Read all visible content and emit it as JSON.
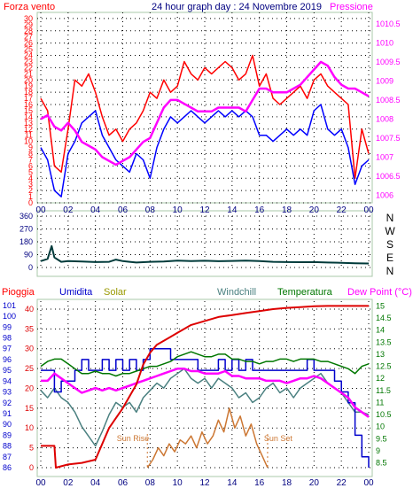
{
  "colors": {
    "background": "#ffffff",
    "plot_bg": "#ffffff",
    "grid": "#000000",
    "wind": "#ff0000",
    "pressure": "#ff00ff",
    "blue_trace": "#0000ff",
    "direction": "#003a3a",
    "rain": "#dd0000",
    "humidity": "#0000cc",
    "solar": "#cc7733",
    "windchill": "#4a8080",
    "temperature": "#007700",
    "dewpoint": "#ff00ff",
    "axis_text": "#000080",
    "frame": "#a8c8a8"
  },
  "chart_data": [
    {
      "type": "line",
      "title": "24 hour graph day : 24 Novembre 2019",
      "left_label": "Forza vento",
      "right_label": "Pressione",
      "x_ticks": [
        "00",
        "02",
        "04",
        "06",
        "08",
        "10",
        "12",
        "14",
        "16",
        "18",
        "20",
        "22",
        "00"
      ],
      "xlim": [
        0,
        24
      ],
      "y_left_ticks": [
        "0",
        "1",
        "2",
        "3",
        "4",
        "5",
        "6",
        "7",
        "8",
        "9",
        "10",
        "11",
        "12",
        "13",
        "14",
        "15",
        "16",
        "17",
        "18",
        "19",
        "20",
        "21",
        "22",
        "23",
        "24",
        "25",
        "26",
        "27",
        "28",
        "29",
        "30"
      ],
      "ylim_left": [
        0,
        31
      ],
      "y_right_ticks": [
        "1006",
        "1006.5",
        "1007",
        "1007.5",
        "1008",
        "1008.5",
        "1009",
        "1009.5",
        "1010",
        "1010.5"
      ],
      "ylim_right": [
        1005.8,
        1010.8
      ],
      "series": [
        {
          "key": "wind",
          "axis": "left",
          "x": [
            0,
            0.5,
            1,
            1.5,
            2,
            2.5,
            3,
            3.5,
            4,
            4.5,
            5,
            5.5,
            6,
            6.5,
            7,
            7.5,
            8,
            8.5,
            9,
            9.5,
            10,
            10.5,
            11,
            11.5,
            12,
            12.5,
            13,
            13.5,
            14,
            14.5,
            15,
            15.5,
            16,
            16.5,
            17,
            17.5,
            18,
            18.5,
            19,
            19.5,
            20,
            20.5,
            21,
            21.5,
            22,
            22.5,
            23,
            23.5,
            24
          ],
          "y": [
            17,
            15,
            6,
            5,
            12,
            20,
            19,
            21,
            18,
            14,
            11,
            12,
            10,
            12,
            13,
            15,
            18,
            17,
            20,
            18,
            19,
            23,
            21,
            20,
            22,
            21,
            22,
            23,
            22,
            20,
            21,
            24,
            19,
            21,
            17,
            16,
            17,
            18,
            19,
            17,
            20,
            21,
            19,
            18,
            17,
            16,
            4,
            12,
            8
          ]
        },
        {
          "key": "blue_trace",
          "axis": "left",
          "x": [
            0,
            0.5,
            1,
            1.5,
            2,
            2.5,
            3,
            3.5,
            4,
            4.5,
            5,
            5.5,
            6,
            6.5,
            7,
            7.5,
            8,
            8.5,
            9,
            9.5,
            10,
            10.5,
            11,
            11.5,
            12,
            12.5,
            13,
            13.5,
            14,
            14.5,
            15,
            15.5,
            16,
            16.5,
            17,
            17.5,
            18,
            18.5,
            19,
            19.5,
            20,
            20.5,
            21,
            21.5,
            22,
            22.5,
            23,
            23.5,
            24
          ],
          "y": [
            9,
            7,
            2,
            1,
            8,
            10,
            13,
            14,
            15,
            11,
            9,
            7,
            6,
            5,
            8,
            7,
            4,
            9,
            12,
            14,
            13,
            14,
            15,
            14,
            13,
            14,
            15,
            14,
            15,
            14,
            15,
            14,
            11,
            11,
            10,
            11,
            12,
            11,
            12,
            11,
            15,
            16,
            12,
            11,
            12,
            9,
            3,
            6,
            7
          ]
        },
        {
          "key": "pressure",
          "axis": "right",
          "x": [
            0,
            0.5,
            1,
            1.5,
            2,
            2.5,
            3,
            3.5,
            4,
            4.5,
            5,
            5.5,
            6,
            6.5,
            7,
            7.5,
            8,
            8.5,
            9,
            9.5,
            10,
            10.5,
            11,
            11.5,
            12,
            12.5,
            13,
            13.5,
            14,
            14.5,
            15,
            15.5,
            16,
            16.5,
            17,
            17.5,
            18,
            18.5,
            19,
            19.5,
            20,
            20.5,
            21,
            21.5,
            22,
            22.5,
            23,
            23.5,
            24
          ],
          "y": [
            1008,
            1008.1,
            1007.8,
            1007.7,
            1007.9,
            1007.7,
            1007.4,
            1007.3,
            1007.2,
            1007,
            1006.9,
            1006.8,
            1006.9,
            1007,
            1007.2,
            1007.4,
            1007.5,
            1007.9,
            1008.3,
            1008.5,
            1008.5,
            1008.4,
            1008.3,
            1008.2,
            1008.2,
            1008.2,
            1008.3,
            1008.3,
            1008.3,
            1008.3,
            1008.2,
            1008.5,
            1008.8,
            1008.8,
            1008.7,
            1008.7,
            1008.7,
            1008.8,
            1008.9,
            1009.1,
            1009.3,
            1009.5,
            1009.4,
            1009.1,
            1008.9,
            1008.8,
            1008.8,
            1008.7,
            1008.6
          ]
        }
      ]
    },
    {
      "type": "line",
      "right_labels": [
        "N",
        "W",
        "S",
        "E",
        "N"
      ],
      "y_ticks": [
        "0",
        "90",
        "180",
        "270",
        "360"
      ],
      "ylim": [
        0,
        360
      ],
      "series": [
        {
          "key": "direction",
          "x": [
            0,
            0.5,
            0.8,
            1,
            1.5,
            2,
            3,
            4,
            5,
            5.5,
            6,
            6.5,
            7,
            8,
            9,
            10,
            11,
            12,
            13,
            14,
            15,
            16,
            17,
            18,
            19,
            20,
            21,
            22,
            23,
            24
          ],
          "y": [
            45,
            60,
            150,
            70,
            40,
            45,
            42,
            38,
            40,
            55,
            45,
            40,
            35,
            40,
            42,
            48,
            45,
            47,
            44,
            46,
            48,
            45,
            40,
            38,
            37,
            38,
            35,
            33,
            30,
            28
          ]
        }
      ]
    },
    {
      "type": "line",
      "labels": {
        "rain": "Pioggia",
        "humidity": "Umidita",
        "solar": "Solar",
        "windchill": "Windchill",
        "temperature": "Temperatura",
        "dewpoint": "Dew Point (°C)",
        "sunrise": "Sun Rise",
        "sunset": "Sun Set"
      },
      "x_ticks": [
        "00",
        "02",
        "04",
        "06",
        "08",
        "10",
        "12",
        "14",
        "16",
        "18",
        "20",
        "22",
        "00"
      ],
      "xlim": [
        0,
        24
      ],
      "y_rain_ticks": [
        "0",
        "5",
        "10",
        "15",
        "20",
        "25",
        "30",
        "35",
        "40"
      ],
      "ylim_rain": [
        0,
        42
      ],
      "y_humidity_ticks": [
        "86",
        "87",
        "88",
        "89",
        "90",
        "91",
        "92",
        "93",
        "94",
        "95",
        "96",
        "97",
        "98",
        "99",
        "100",
        "101"
      ],
      "ylim_humidity": [
        86,
        101.4
      ],
      "y_temp_ticks": [
        "8.5",
        "9",
        "9.5",
        "10",
        "10.5",
        "11",
        "11.5",
        "12",
        "12.5",
        "13",
        "13.5",
        "14",
        "14.5",
        "15"
      ],
      "ylim_temp": [
        8.3,
        15.2
      ],
      "series": [
        {
          "key": "rain",
          "axis": "rain",
          "x": [
            0,
            1,
            1.1,
            2,
            3,
            4,
            5,
            6,
            7,
            7.5,
            8,
            8.5,
            9,
            10,
            11,
            12,
            13,
            14,
            15,
            16,
            17,
            18,
            19,
            20,
            21,
            22,
            23,
            24
          ],
          "y": [
            5.5,
            5.5,
            0,
            0.8,
            1.2,
            2,
            10,
            15,
            21,
            26,
            29,
            31,
            32,
            34,
            36,
            37,
            38,
            38.5,
            39,
            39.5,
            40,
            40.3,
            40.5,
            40.7,
            40.8,
            40.8,
            40.8,
            40.8
          ]
        },
        {
          "key": "humidity",
          "axis": "humidity",
          "x": [
            0,
            0.5,
            1,
            1.5,
            2,
            2.5,
            3,
            3.5,
            4,
            4.5,
            5,
            5.5,
            6,
            6.5,
            7,
            7.5,
            8,
            8.5,
            9,
            9.5,
            10,
            10.5,
            11,
            11.5,
            12,
            12.5,
            13,
            13.5,
            14,
            14.5,
            15,
            15.5,
            16,
            16.5,
            17,
            17.5,
            18,
            18.5,
            19,
            19.5,
            20,
            20.5,
            21,
            21.5,
            22,
            22.5,
            23,
            23.5,
            24
          ],
          "y": [
            95,
            95,
            93,
            94,
            94,
            95,
            96,
            95,
            95,
            96,
            95,
            96,
            95,
            96,
            95,
            96,
            97,
            97,
            97,
            96,
            96,
            96,
            96,
            95,
            95,
            95,
            96,
            95,
            96,
            95,
            96,
            95,
            95,
            95,
            95,
            95,
            95,
            95,
            95,
            96,
            95,
            95,
            95,
            94,
            93,
            92,
            89,
            87,
            86
          ]
        },
        {
          "key": "windchill",
          "axis": "temp",
          "x": [
            0,
            0.5,
            1,
            1.5,
            2,
            2.5,
            3,
            3.5,
            4,
            4.5,
            5,
            5.5,
            6,
            6.5,
            7,
            7.5,
            8,
            8.5,
            9,
            9.5,
            10,
            10.5,
            11,
            11.5,
            12,
            12.5,
            13,
            13.5,
            14,
            14.5,
            15,
            15.5,
            16,
            16.5,
            17,
            17.5,
            18,
            18.5,
            19,
            19.5,
            20,
            20.5,
            21,
            21.5,
            22,
            22.5,
            23,
            23.5,
            24
          ],
          "y": [
            11.5,
            11.2,
            11.6,
            11.2,
            11,
            10.6,
            10,
            9.6,
            9.2,
            9.8,
            10.5,
            11,
            10.8,
            11,
            10.6,
            11.2,
            11.5,
            11.8,
            11.6,
            12,
            12.2,
            12.4,
            12,
            11.8,
            12,
            11.6,
            12,
            11.8,
            11.6,
            11.2,
            11.4,
            11,
            11.2,
            11.6,
            11.8,
            11.4,
            11.6,
            11.2,
            11.6,
            11.8,
            12,
            12.2,
            11.8,
            11.6,
            11.4,
            11,
            10.6,
            10.6,
            10.5
          ]
        },
        {
          "key": "temperature",
          "axis": "temp",
          "x": [
            0,
            0.5,
            1,
            1.5,
            2,
            2.5,
            3,
            3.5,
            4,
            4.5,
            5,
            5.5,
            6,
            6.5,
            7,
            7.5,
            8,
            8.5,
            9,
            9.5,
            10,
            10.5,
            11,
            11.5,
            12,
            12.5,
            13,
            13.5,
            14,
            14.5,
            15,
            15.5,
            16,
            16.5,
            17,
            17.5,
            18,
            18.5,
            19,
            19.5,
            20,
            20.5,
            21,
            21.5,
            22,
            22.5,
            23,
            23.5,
            24
          ],
          "y": [
            12.5,
            12.7,
            12.8,
            12.8,
            12.6,
            12.4,
            12.2,
            12.2,
            12.3,
            12.2,
            12.2,
            12.1,
            12.2,
            12.2,
            12.3,
            12.4,
            12.5,
            12.5,
            12.6,
            12.7,
            12.9,
            13,
            13.1,
            13,
            12.9,
            12.9,
            13,
            13,
            12.8,
            12.8,
            12.7,
            12.7,
            12.6,
            12.7,
            12.7,
            12.8,
            12.8,
            12.7,
            12.8,
            12.8,
            12.8,
            12.7,
            12.7,
            12.6,
            12.5,
            12.4,
            12.2,
            12.5,
            12.6
          ]
        },
        {
          "key": "dewpoint",
          "axis": "temp",
          "x": [
            0,
            0.5,
            1,
            1.5,
            2,
            2.5,
            3,
            3.5,
            4,
            4.5,
            5,
            5.5,
            6,
            6.5,
            7,
            7.5,
            8,
            8.5,
            9,
            9.5,
            10,
            10.5,
            11,
            11.5,
            12,
            12.5,
            13,
            13.5,
            14,
            14.5,
            15,
            15.5,
            16,
            16.5,
            17,
            17.5,
            18,
            18.5,
            19,
            19.5,
            20,
            20.5,
            21,
            21.5,
            22,
            22.5,
            23,
            23.5,
            24
          ],
          "y": [
            11.9,
            11.9,
            12.2,
            12,
            11.8,
            11.6,
            11.4,
            11.5,
            11.6,
            11.5,
            11.6,
            11.5,
            11.6,
            11.7,
            11.8,
            11.9,
            12,
            12.1,
            12.2,
            12.3,
            12.4,
            12.4,
            12.3,
            12.3,
            12.2,
            12.2,
            12.2,
            12.3,
            12.1,
            12.1,
            12,
            12,
            12,
            11.9,
            11.9,
            11.9,
            11.8,
            11.9,
            12,
            12,
            12.1,
            12,
            11.8,
            11.6,
            11.4,
            11.2,
            10.8,
            10.6,
            10.4
          ]
        },
        {
          "key": "solar",
          "axis": "rain",
          "x": [
            7.8,
            8.2,
            8.6,
            9,
            9.4,
            9.8,
            10.2,
            10.6,
            11,
            11.4,
            11.8,
            12.2,
            12.6,
            13,
            13.4,
            13.8,
            14.2,
            14.6,
            15,
            15.4,
            15.8,
            16.2,
            16.6
          ],
          "y": [
            0,
            2,
            5,
            3,
            6,
            4,
            7,
            6,
            8,
            5,
            9,
            6,
            8,
            12,
            9,
            15,
            10,
            13,
            8,
            11,
            6,
            3,
            0
          ]
        }
      ],
      "annotations": [
        {
          "key": "sunrise",
          "x": 7.8
        },
        {
          "key": "sunset",
          "x": 16.6
        }
      ]
    }
  ]
}
